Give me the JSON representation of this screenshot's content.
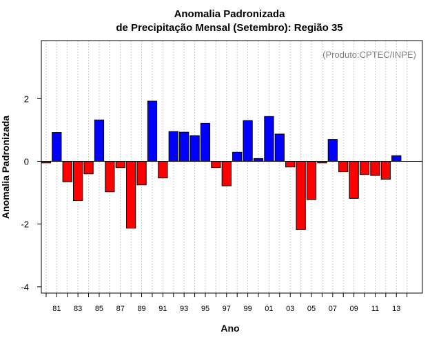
{
  "chart_data": {
    "type": "bar",
    "title_line1": "Anomalia Padronizada",
    "title_line2": "de Precipitação Mensal (Setembro): Região 35",
    "xlabel": "Ano",
    "ylabel": "Anomalia Padronizada",
    "credit": "(Produto:CPTEC/INPE)",
    "ylim": [
      -4.2,
      3.85
    ],
    "xlim": [
      1979.55,
      2015.45
    ],
    "yticks": [
      -4,
      -2,
      0,
      2
    ],
    "ytick_labels": [
      "-4",
      "-2",
      "0",
      "2"
    ],
    "xtick_labels": [
      {
        "year": 1981,
        "label": "81"
      },
      {
        "year": 1983,
        "label": "83"
      },
      {
        "year": 1985,
        "label": "85"
      },
      {
        "year": 1987,
        "label": "87"
      },
      {
        "year": 1989,
        "label": "89"
      },
      {
        "year": 1991,
        "label": "91"
      },
      {
        "year": 1993,
        "label": "93"
      },
      {
        "year": 1995,
        "label": "95"
      },
      {
        "year": 1997,
        "label": "97"
      },
      {
        "year": 1999,
        "label": "99"
      },
      {
        "year": 2001,
        "label": "01"
      },
      {
        "year": 2003,
        "label": "03"
      },
      {
        "year": 2005,
        "label": "05"
      },
      {
        "year": 2007,
        "label": "07"
      },
      {
        "year": 2009,
        "label": "09"
      },
      {
        "year": 2011,
        "label": "11"
      },
      {
        "year": 2013,
        "label": "13"
      }
    ],
    "years": [
      1980,
      1981,
      1982,
      1983,
      1984,
      1985,
      1986,
      1987,
      1988,
      1989,
      1990,
      1991,
      1992,
      1993,
      1994,
      1995,
      1996,
      1997,
      1998,
      1999,
      2000,
      2001,
      2002,
      2003,
      2004,
      2005,
      2006,
      2007,
      2008,
      2009,
      2010,
      2011,
      2012,
      2013,
      2014
    ],
    "values": [
      -0.05,
      0.92,
      -0.65,
      -1.25,
      -0.4,
      1.32,
      -0.97,
      -0.2,
      -2.13,
      -0.75,
      1.92,
      -0.53,
      0.95,
      0.93,
      0.82,
      1.21,
      -0.2,
      -0.78,
      0.29,
      1.3,
      0.09,
      1.43,
      0.87,
      -0.18,
      -2.17,
      -1.22,
      -0.05,
      0.7,
      -0.33,
      -1.18,
      -0.42,
      -0.45,
      -0.57,
      0.18,
      null
    ],
    "positive_color": "#0000ff",
    "negative_color": "#ff0000",
    "grid": true
  }
}
